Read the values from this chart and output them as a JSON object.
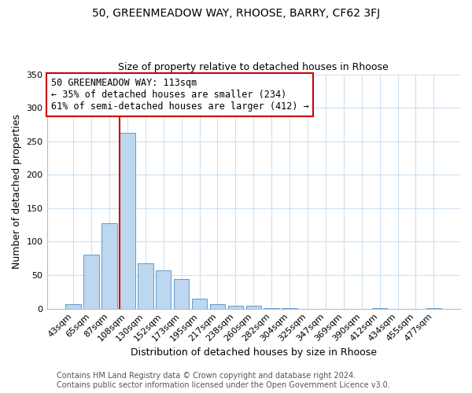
{
  "title": "50, GREENMEADOW WAY, RHOOSE, BARRY, CF62 3FJ",
  "subtitle": "Size of property relative to detached houses in Rhoose",
  "bar_labels": [
    "43sqm",
    "65sqm",
    "87sqm",
    "108sqm",
    "130sqm",
    "152sqm",
    "173sqm",
    "195sqm",
    "217sqm",
    "238sqm",
    "260sqm",
    "282sqm",
    "304sqm",
    "325sqm",
    "347sqm",
    "369sqm",
    "390sqm",
    "412sqm",
    "434sqm",
    "455sqm",
    "477sqm"
  ],
  "bar_values": [
    7,
    81,
    128,
    263,
    68,
    57,
    44,
    15,
    7,
    4,
    4,
    1,
    1,
    0,
    0,
    0,
    0,
    1,
    0,
    0,
    1
  ],
  "bar_color": "#bdd7ee",
  "bar_edge_color": "#5b9bd5",
  "vline_index": 3,
  "vline_color": "#cc0000",
  "xlabel": "Distribution of detached houses by size in Rhoose",
  "ylabel": "Number of detached properties",
  "ylim": [
    0,
    350
  ],
  "yticks": [
    0,
    50,
    100,
    150,
    200,
    250,
    300,
    350
  ],
  "annotation_title": "50 GREENMEADOW WAY: 113sqm",
  "annotation_line1": "← 35% of detached houses are smaller (234)",
  "annotation_line2": "61% of semi-detached houses are larger (412) →",
  "annotation_box_color": "#ffffff",
  "annotation_box_edge": "#cc0000",
  "footer1": "Contains HM Land Registry data © Crown copyright and database right 2024.",
  "footer2": "Contains public sector information licensed under the Open Government Licence v3.0.",
  "title_fontsize": 10,
  "subtitle_fontsize": 9,
  "axis_label_fontsize": 9,
  "tick_fontsize": 8,
  "annotation_fontsize": 8.5,
  "footer_fontsize": 7,
  "grid_color": "#cce0f0",
  "background_color": "#ffffff"
}
